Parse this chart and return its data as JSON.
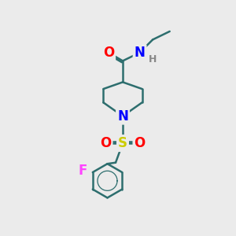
{
  "bg_color": "#ebebeb",
  "bond_color": "#2d6e6e",
  "bond_width": 1.8,
  "atom_colors": {
    "O": "#ff0000",
    "N": "#0000ff",
    "S": "#cccc00",
    "F": "#ff44ff",
    "H": "#888888",
    "C": "#2d6e6e"
  },
  "font_size_atom": 12,
  "font_size_H": 9
}
